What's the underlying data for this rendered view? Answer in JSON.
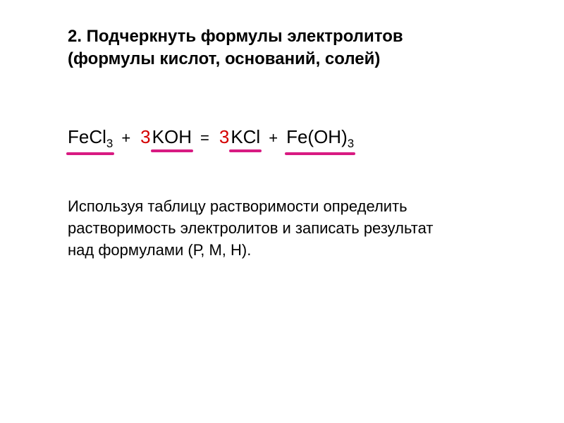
{
  "colors": {
    "text": "#000000",
    "coef": "#d40000",
    "underline": "#d81b82",
    "bg": "#ffffff"
  },
  "fontsizes": {
    "title": 24,
    "equation": 26,
    "note": 22
  },
  "title": {
    "line1": "2. Подчеркнуть формулы электролитов",
    "line2": "(формулы кислот, оснований, солей)"
  },
  "terms": {
    "fecl3": {
      "base": "FeCl",
      "sub": "3"
    },
    "koh": {
      "base": "KOH"
    },
    "kcl": {
      "base": "KCl"
    },
    "feoh3": {
      "base": "Fe(OH)",
      "sub": "3"
    }
  },
  "coefs": {
    "koh": "3",
    "kcl": "3"
  },
  "ops": {
    "plus": "+",
    "eq": "="
  },
  "note": {
    "line1": "Используя таблицу растворимости определить",
    "line2": "растворимость электролитов и записать результат",
    "line3": "над формулами (Р, М, Н)."
  }
}
